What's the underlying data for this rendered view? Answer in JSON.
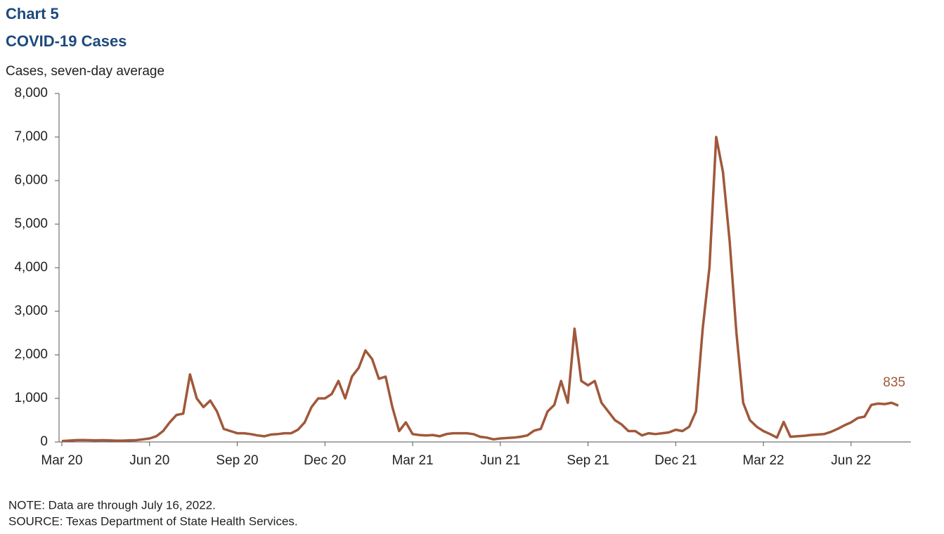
{
  "chart_data": {
    "type": "line",
    "chart_label": "Chart 5",
    "title": "COVID-19 Cases",
    "y_label": "Cases, seven-day average",
    "note": "NOTE: Data are through July 16, 2022.",
    "source": "SOURCE: Texas Department of State Health Services.",
    "categories": [
      "Mar 20",
      null,
      null,
      null,
      null,
      null,
      null,
      null,
      null,
      null,
      null,
      null,
      null,
      "Jun 20",
      null,
      null,
      null,
      null,
      null,
      null,
      null,
      null,
      null,
      null,
      null,
      null,
      "Sep 20",
      null,
      null,
      null,
      null,
      null,
      null,
      null,
      null,
      null,
      null,
      null,
      null,
      "Dec 20",
      null,
      null,
      null,
      null,
      null,
      null,
      null,
      null,
      null,
      null,
      null,
      null,
      "Mar 21",
      null,
      null,
      null,
      null,
      null,
      null,
      null,
      null,
      null,
      null,
      null,
      null,
      "Jun 21",
      null,
      null,
      null,
      null,
      null,
      null,
      null,
      null,
      null,
      null,
      null,
      null,
      "Sep 21",
      null,
      null,
      null,
      null,
      null,
      null,
      null,
      null,
      null,
      null,
      null,
      null,
      "Dec 21",
      null,
      null,
      null,
      null,
      null,
      null,
      null,
      null,
      null,
      null,
      null,
      null,
      "Mar 22",
      null,
      null,
      null,
      null,
      null,
      null,
      null,
      null,
      null,
      null,
      null,
      null,
      "Jun 22",
      null,
      null,
      null,
      null,
      null,
      null,
      null
    ],
    "series": [
      {
        "name": "Cases",
        "color": "#a0583a",
        "values": [
          20,
          30,
          40,
          45,
          40,
          35,
          40,
          35,
          30,
          30,
          35,
          40,
          60,
          80,
          130,
          250,
          450,
          620,
          650,
          1550,
          1000,
          800,
          950,
          700,
          300,
          250,
          200,
          200,
          180,
          150,
          130,
          170,
          180,
          200,
          200,
          280,
          450,
          800,
          1000,
          1000,
          1100,
          1400,
          1000,
          1500,
          1700,
          2100,
          1900,
          1450,
          1500,
          800,
          250,
          450,
          180,
          160,
          150,
          160,
          130,
          180,
          200,
          200,
          200,
          180,
          120,
          100,
          60,
          80,
          90,
          100,
          120,
          150,
          260,
          300,
          700,
          850,
          1400,
          900,
          2600,
          1400,
          1300,
          1400,
          900,
          700,
          500,
          400,
          250,
          250,
          150,
          200,
          180,
          200,
          220,
          280,
          250,
          350,
          700,
          2600,
          4000,
          7000,
          6200,
          4600,
          2500,
          900,
          500,
          350,
          250,
          180,
          100,
          460,
          120,
          130,
          140,
          160,
          170,
          180,
          230,
          300,
          380,
          450,
          550,
          580,
          850,
          880,
          870,
          900,
          835
        ]
      }
    ],
    "ylim": [
      0,
      8000
    ],
    "yticks": [
      0,
      {
        "value": 1000,
        "label": "1,000"
      },
      {
        "value": 2000,
        "label": "2,000"
      },
      {
        "value": 3000,
        "label": "3,000"
      },
      {
        "value": 4000,
        "label": "4,000"
      },
      {
        "value": 5000,
        "label": "5,000"
      },
      {
        "value": 6000,
        "label": "6,000"
      },
      {
        "value": 7000,
        "label": "7,000"
      },
      {
        "value": 8000,
        "label": "8,000"
      }
    ],
    "grid": false
  }
}
